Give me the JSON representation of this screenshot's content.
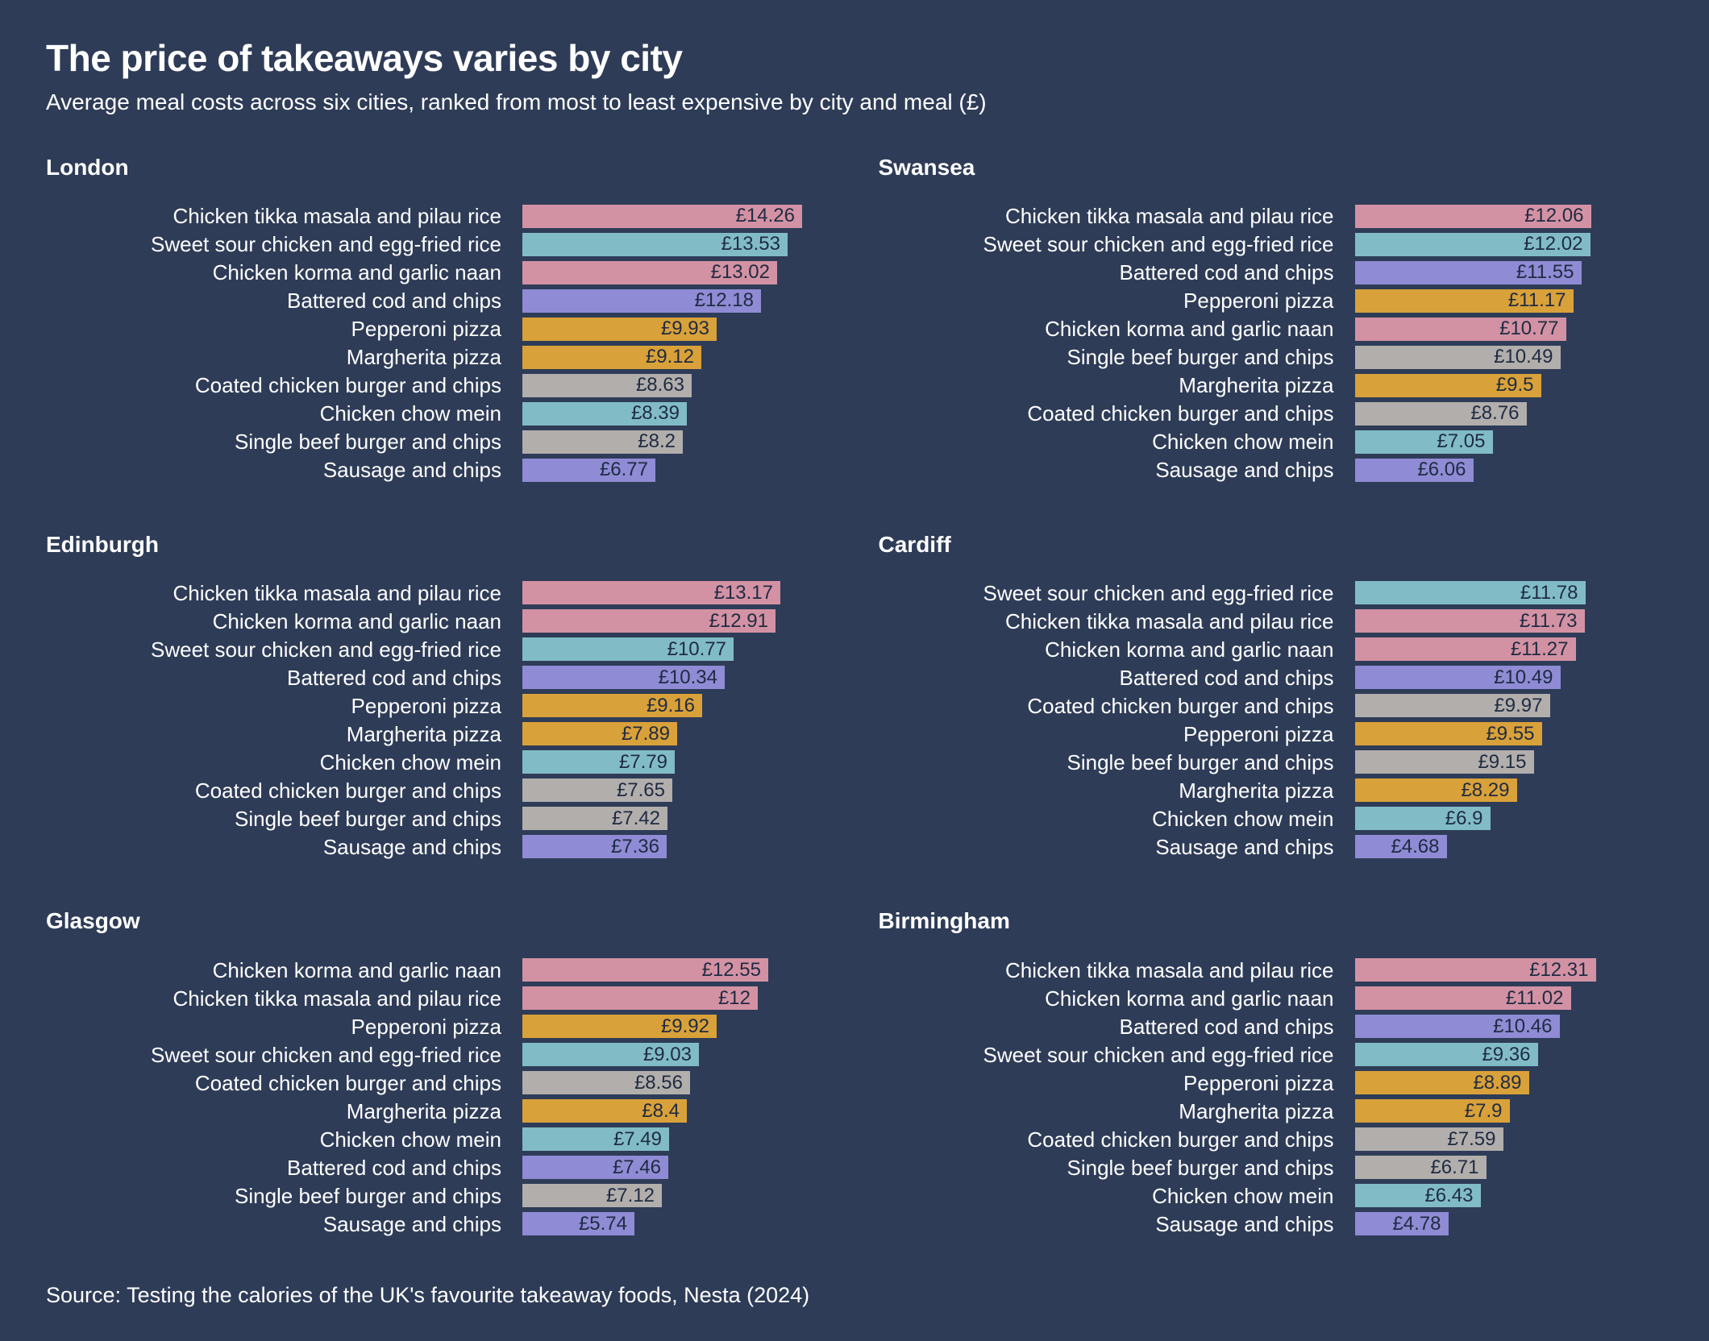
{
  "title": "The price of takeaways varies by city",
  "subtitle": "Average meal costs across six cities, ranked from most to least expensive by city and meal (£)",
  "source": "Source: Testing the calories of the UK's favourite takeaway foods, Nesta (2024)",
  "colors": {
    "background": "#2e3c57",
    "heading_text": "#ffffff",
    "value_text": "#1f2b42",
    "palette": {
      "pink": "#d392a4",
      "teal": "#81bcc6",
      "purple": "#8f8bd4",
      "gold": "#d9a139",
      "grey": "#b1aeac"
    }
  },
  "chart_data": {
    "type": "bar",
    "orientation": "horizontal",
    "unit": "£",
    "xlim": [
      0,
      14.26
    ],
    "grid": false,
    "legend": "none",
    "cities": [
      {
        "name": "London",
        "items": [
          {
            "label": "Chicken tikka masala and pilau rice",
            "value": 14.26,
            "display": "£14.26",
            "color": "pink"
          },
          {
            "label": "Sweet sour chicken and egg-fried rice",
            "value": 13.53,
            "display": "£13.53",
            "color": "teal"
          },
          {
            "label": "Chicken korma and garlic naan",
            "value": 13.02,
            "display": "£13.02",
            "color": "pink"
          },
          {
            "label": "Battered cod and chips",
            "value": 12.18,
            "display": "£12.18",
            "color": "purple"
          },
          {
            "label": "Pepperoni pizza",
            "value": 9.93,
            "display": "£9.93",
            "color": "gold"
          },
          {
            "label": "Margherita pizza",
            "value": 9.12,
            "display": "£9.12",
            "color": "gold"
          },
          {
            "label": "Coated chicken burger and chips",
            "value": 8.63,
            "display": "£8.63",
            "color": "grey"
          },
          {
            "label": "Chicken chow mein",
            "value": 8.39,
            "display": "£8.39",
            "color": "teal"
          },
          {
            "label": "Single beef burger and chips",
            "value": 8.2,
            "display": "£8.2",
            "color": "grey"
          },
          {
            "label": "Sausage and chips",
            "value": 6.77,
            "display": "£6.77",
            "color": "purple"
          }
        ]
      },
      {
        "name": "Swansea",
        "items": [
          {
            "label": "Chicken tikka masala and pilau rice",
            "value": 12.06,
            "display": "£12.06",
            "color": "pink"
          },
          {
            "label": "Sweet sour chicken and egg-fried rice",
            "value": 12.02,
            "display": "£12.02",
            "color": "teal"
          },
          {
            "label": "Battered cod and chips",
            "value": 11.55,
            "display": "£11.55",
            "color": "purple"
          },
          {
            "label": "Pepperoni pizza",
            "value": 11.17,
            "display": "£11.17",
            "color": "gold"
          },
          {
            "label": "Chicken korma and garlic naan",
            "value": 10.77,
            "display": "£10.77",
            "color": "pink"
          },
          {
            "label": "Single beef burger and chips",
            "value": 10.49,
            "display": "£10.49",
            "color": "grey"
          },
          {
            "label": "Margherita pizza",
            "value": 9.5,
            "display": "£9.5",
            "color": "gold"
          },
          {
            "label": "Coated chicken burger and chips",
            "value": 8.76,
            "display": "£8.76",
            "color": "grey"
          },
          {
            "label": "Chicken chow mein",
            "value": 7.05,
            "display": "£7.05",
            "color": "teal"
          },
          {
            "label": "Sausage and chips",
            "value": 6.06,
            "display": "£6.06",
            "color": "purple"
          }
        ]
      },
      {
        "name": "Edinburgh",
        "items": [
          {
            "label": "Chicken tikka masala and pilau rice",
            "value": 13.17,
            "display": "£13.17",
            "color": "pink"
          },
          {
            "label": "Chicken korma and garlic naan",
            "value": 12.91,
            "display": "£12.91",
            "color": "pink"
          },
          {
            "label": "Sweet sour chicken and egg-fried rice",
            "value": 10.77,
            "display": "£10.77",
            "color": "teal"
          },
          {
            "label": "Battered cod and chips",
            "value": 10.34,
            "display": "£10.34",
            "color": "purple"
          },
          {
            "label": "Pepperoni pizza",
            "value": 9.16,
            "display": "£9.16",
            "color": "gold"
          },
          {
            "label": "Margherita pizza",
            "value": 7.89,
            "display": "£7.89",
            "color": "gold"
          },
          {
            "label": "Chicken chow mein",
            "value": 7.79,
            "display": "£7.79",
            "color": "teal"
          },
          {
            "label": "Coated chicken burger and chips",
            "value": 7.65,
            "display": "£7.65",
            "color": "grey"
          },
          {
            "label": "Single beef burger and chips",
            "value": 7.42,
            "display": "£7.42",
            "color": "grey"
          },
          {
            "label": "Sausage and chips",
            "value": 7.36,
            "display": "£7.36",
            "color": "purple"
          }
        ]
      },
      {
        "name": "Cardiff",
        "items": [
          {
            "label": "Sweet sour chicken and egg-fried rice",
            "value": 11.78,
            "display": "£11.78",
            "color": "teal"
          },
          {
            "label": "Chicken tikka masala and pilau rice",
            "value": 11.73,
            "display": "£11.73",
            "color": "pink"
          },
          {
            "label": "Chicken korma and garlic naan",
            "value": 11.27,
            "display": "£11.27",
            "color": "pink"
          },
          {
            "label": "Battered cod and chips",
            "value": 10.49,
            "display": "£10.49",
            "color": "purple"
          },
          {
            "label": "Coated chicken burger and chips",
            "value": 9.97,
            "display": "£9.97",
            "color": "grey"
          },
          {
            "label": "Pepperoni pizza",
            "value": 9.55,
            "display": "£9.55",
            "color": "gold"
          },
          {
            "label": "Single beef burger and chips",
            "value": 9.15,
            "display": "£9.15",
            "color": "grey"
          },
          {
            "label": "Margherita pizza",
            "value": 8.29,
            "display": "£8.29",
            "color": "gold"
          },
          {
            "label": "Chicken chow mein",
            "value": 6.9,
            "display": "£6.9",
            "color": "teal"
          },
          {
            "label": "Sausage and chips",
            "value": 4.68,
            "display": "£4.68",
            "color": "purple"
          }
        ]
      },
      {
        "name": "Glasgow",
        "items": [
          {
            "label": "Chicken korma and garlic naan",
            "value": 12.55,
            "display": "£12.55",
            "color": "pink"
          },
          {
            "label": "Chicken tikka masala and pilau rice",
            "value": 12,
            "display": "£12",
            "color": "pink"
          },
          {
            "label": "Pepperoni pizza",
            "value": 9.92,
            "display": "£9.92",
            "color": "gold"
          },
          {
            "label": "Sweet sour chicken and egg-fried rice",
            "value": 9.03,
            "display": "£9.03",
            "color": "teal"
          },
          {
            "label": "Coated chicken burger and chips",
            "value": 8.56,
            "display": "£8.56",
            "color": "grey"
          },
          {
            "label": "Margherita pizza",
            "value": 8.4,
            "display": "£8.4",
            "color": "gold"
          },
          {
            "label": "Chicken chow mein",
            "value": 7.49,
            "display": "£7.49",
            "color": "teal"
          },
          {
            "label": "Battered cod and chips",
            "value": 7.46,
            "display": "£7.46",
            "color": "purple"
          },
          {
            "label": "Single beef burger and chips",
            "value": 7.12,
            "display": "£7.12",
            "color": "grey"
          },
          {
            "label": "Sausage and chips",
            "value": 5.74,
            "display": "£5.74",
            "color": "purple"
          }
        ]
      },
      {
        "name": "Birmingham",
        "items": [
          {
            "label": "Chicken tikka masala and pilau rice",
            "value": 12.31,
            "display": "£12.31",
            "color": "pink"
          },
          {
            "label": "Chicken korma and garlic naan",
            "value": 11.02,
            "display": "£11.02",
            "color": "pink"
          },
          {
            "label": "Battered cod and chips",
            "value": 10.46,
            "display": "£10.46",
            "color": "purple"
          },
          {
            "label": "Sweet sour chicken and egg-fried rice",
            "value": 9.36,
            "display": "£9.36",
            "color": "teal"
          },
          {
            "label": "Pepperoni pizza",
            "value": 8.89,
            "display": "£8.89",
            "color": "gold"
          },
          {
            "label": "Margherita pizza",
            "value": 7.9,
            "display": "£7.9",
            "color": "gold"
          },
          {
            "label": "Coated chicken burger and chips",
            "value": 7.59,
            "display": "£7.59",
            "color": "grey"
          },
          {
            "label": "Single beef burger and chips",
            "value": 6.71,
            "display": "£6.71",
            "color": "grey"
          },
          {
            "label": "Chicken chow mein",
            "value": 6.43,
            "display": "£6.43",
            "color": "teal"
          },
          {
            "label": "Sausage and chips",
            "value": 4.78,
            "display": "£4.78",
            "color": "purple"
          }
        ]
      }
    ]
  }
}
